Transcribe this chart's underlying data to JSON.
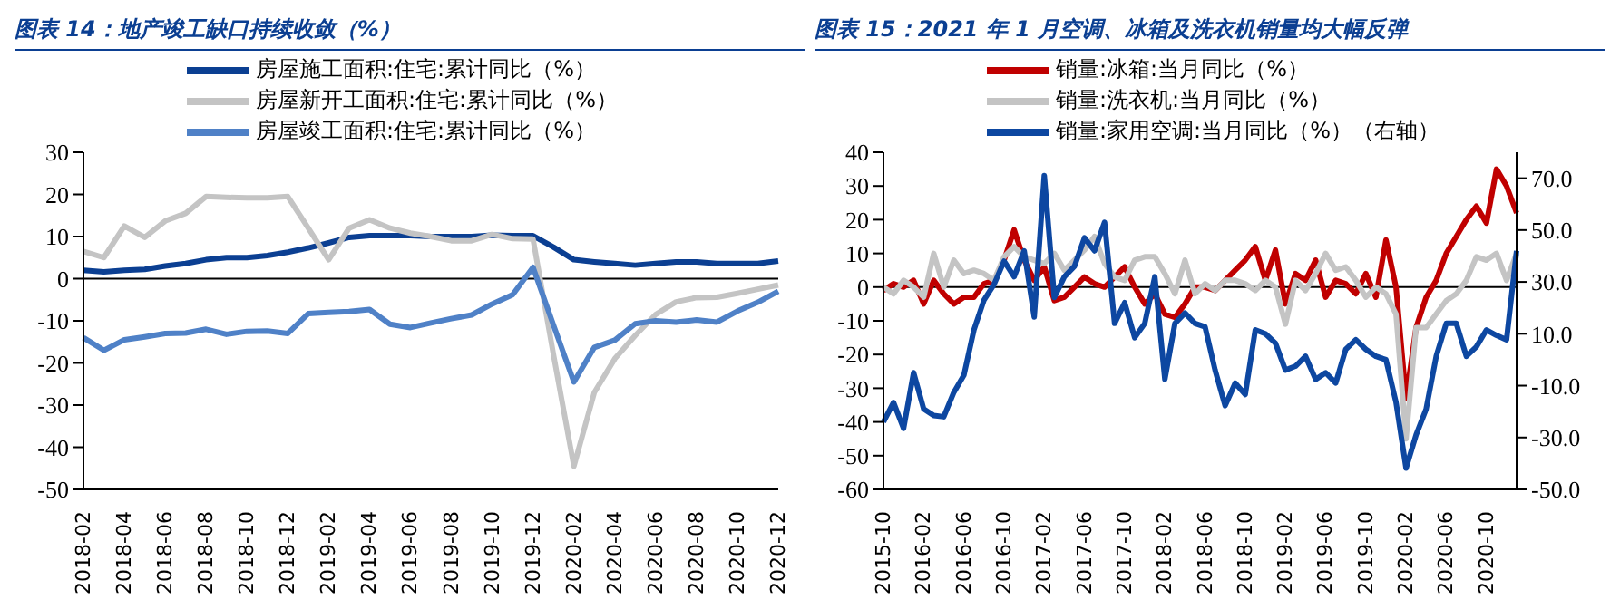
{
  "chart_data": [
    {
      "type": "line",
      "title": "图表 14：地产竣工缺口持续收敛（%）",
      "categories": [
        "2018-02",
        null,
        "2018-04",
        null,
        "2018-06",
        null,
        "2018-08",
        null,
        "2018-10",
        null,
        "2018-12",
        null,
        "2019-02",
        null,
        "2019-04",
        null,
        "2019-06",
        null,
        "2019-08",
        null,
        "2019-10",
        null,
        "2019-12",
        null,
        "2020-02",
        null,
        "2020-04",
        null,
        "2020-06",
        null,
        "2020-08",
        null,
        "2020-10",
        null,
        "2020-12"
      ],
      "series": [
        {
          "name": "房屋施工面积:住宅:累计同比（%）",
          "color": "#0b3f92",
          "values": [
            2,
            1.6,
            2,
            2.2,
            3,
            3.6,
            4.5,
            5,
            5,
            5.5,
            6.3,
            7.3,
            8.5,
            9.8,
            10.2,
            10.2,
            10.2,
            10,
            10,
            10,
            10.3,
            10.2,
            10.2,
            7.5,
            4.5,
            4,
            3.6,
            3.2,
            3.6,
            4,
            4,
            3.6,
            3.6,
            3.6,
            4.2
          ]
        },
        {
          "name": "房屋新开工面积:住宅:累计同比（%）",
          "color": "#c4c4c4",
          "values": [
            6.5,
            5,
            12.5,
            9.8,
            13.7,
            15.5,
            19.5,
            19.3,
            19.2,
            19.2,
            19.5,
            12,
            4.5,
            12,
            14,
            12,
            10.8,
            10,
            9,
            9,
            10.5,
            9.5,
            9.4,
            -18,
            -44.5,
            -27,
            -19,
            -13.5,
            -8.5,
            -5.5,
            -4.5,
            -4.4,
            -3.5,
            -2.5,
            -1.5
          ]
        },
        {
          "name": "房屋竣工面积:住宅:累计同比（%）",
          "color": "#4f81c7",
          "values": [
            -14,
            -17,
            -14.5,
            -13.8,
            -13,
            -12.9,
            -12,
            -13.2,
            -12.5,
            -12.4,
            -13,
            -8.3,
            -8,
            -7.8,
            -7.3,
            -10.8,
            -11.6,
            -10.5,
            -9.5,
            -8.6,
            -6,
            -3.8,
            2.7,
            -11,
            -24.5,
            -16.3,
            -14.6,
            -10.7,
            -10,
            -10.3,
            -9.8,
            -10.3,
            -7.7,
            -5.6,
            -3
          ]
        }
      ],
      "ylim": [
        -50,
        30
      ],
      "yticks": [
        -50,
        -40,
        -30,
        -20,
        -10,
        0,
        10,
        20,
        30
      ],
      "ref_lines": [
        {
          "axis": "y",
          "value": 0,
          "color": "#000000"
        }
      ],
      "legend": "top",
      "grid": false,
      "marker": "none",
      "line_style": "solid"
    },
    {
      "type": "line",
      "title": "图表 15：2021 年 1 月空调、冰箱及洗衣机销量均大幅反弹",
      "categories": [
        "2015-10",
        null,
        null,
        null,
        "2016-02",
        null,
        null,
        null,
        "2016-06",
        null,
        null,
        null,
        "2016-10",
        null,
        null,
        null,
        "2017-02",
        null,
        null,
        null,
        "2017-06",
        null,
        null,
        null,
        "2017-10",
        null,
        null,
        null,
        "2018-02",
        null,
        null,
        null,
        "2018-06",
        null,
        null,
        null,
        "2018-10",
        null,
        null,
        null,
        "2019-02",
        null,
        null,
        null,
        "2019-06",
        null,
        null,
        null,
        "2019-10",
        null,
        null,
        null,
        "2020-02",
        null,
        null,
        null,
        "2020-06",
        null,
        null,
        null,
        "2020-10",
        null,
        null,
        null
      ],
      "series": [
        {
          "name": "销量:冰箱:当月同比（%）",
          "color": "#c00000",
          "values": [
            -1,
            1,
            0,
            2,
            -5,
            2,
            -2,
            -5,
            -3,
            -3,
            1,
            2,
            8,
            17,
            8,
            2,
            6,
            -4,
            -3,
            0,
            3,
            1,
            0,
            3,
            6,
            0,
            -5,
            -2,
            -8,
            -9,
            -5,
            0,
            0,
            -1,
            2,
            5,
            8,
            12,
            2,
            11,
            -5,
            4,
            2,
            8,
            -3,
            2,
            1,
            -2,
            4,
            -3,
            14,
            0,
            -33,
            -12,
            -3,
            2,
            10,
            15,
            20,
            24,
            19,
            35,
            30,
            22
          ]
        },
        {
          "name": "销量:洗衣机:当月同比（%）",
          "color": "#c4c4c4",
          "values": [
            0,
            -2,
            2,
            0,
            -3,
            10,
            0,
            8,
            4,
            5,
            4,
            2,
            9,
            12,
            9,
            8,
            7,
            10,
            5,
            8,
            11,
            15,
            7,
            3,
            2,
            8,
            9,
            9,
            4,
            -2,
            8,
            -2,
            1,
            -1,
            2,
            2,
            1,
            -1,
            2,
            0,
            -11,
            2,
            -1,
            4,
            10,
            5,
            6,
            2,
            -3,
            0,
            -2,
            -8,
            -45,
            -12,
            -12,
            -8,
            -4,
            -2,
            2,
            9,
            8,
            10,
            2,
            10
          ]
        },
        {
          "name": "销量:家用空调:当月同比（%）（右轴）",
          "color": "#0d47a1",
          "axis": "y2",
          "values": [
            -24,
            -16.5,
            -26.5,
            -5,
            -19,
            -21.5,
            -22,
            -12.6,
            -6,
            11.5,
            23,
            29,
            38,
            32,
            42,
            16.5,
            71,
            24,
            32,
            36,
            47,
            42,
            53,
            14,
            22,
            8.5,
            14,
            32,
            -7.5,
            14,
            18,
            14,
            12.7,
            -4,
            -17.7,
            -9,
            -13.4,
            11.5,
            10,
            6.4,
            -4,
            -2.5,
            1.3,
            -7.6,
            -5,
            -9,
            4,
            7.7,
            4,
            1.3,
            0,
            -16.4,
            -41.8,
            -29,
            -19,
            1.3,
            14,
            14,
            1.3,
            5,
            11.5,
            9.4,
            7.7,
            42
          ]
        }
      ],
      "ylim": [
        -60,
        40
      ],
      "yticks": [
        -60,
        -50,
        -40,
        -30,
        -20,
        -10,
        0,
        10,
        20,
        30,
        40
      ],
      "y2lim": [
        -50,
        80
      ],
      "y2ticks": [
        {
          "value": -50,
          "label": "-50.0"
        },
        {
          "value": -30,
          "label": "-30.0"
        },
        {
          "value": -10,
          "label": "-10.0"
        },
        {
          "value": 10,
          "label": "10.0"
        },
        {
          "value": 30,
          "label": "30.0"
        },
        {
          "value": 50,
          "label": "50.0"
        },
        {
          "value": 70,
          "label": "70.0"
        }
      ],
      "ref_lines": [
        {
          "axis": "y",
          "value": 0,
          "color": "#000000"
        }
      ],
      "legend": "top",
      "grid": false,
      "marker": "none",
      "line_style": "solid"
    }
  ]
}
